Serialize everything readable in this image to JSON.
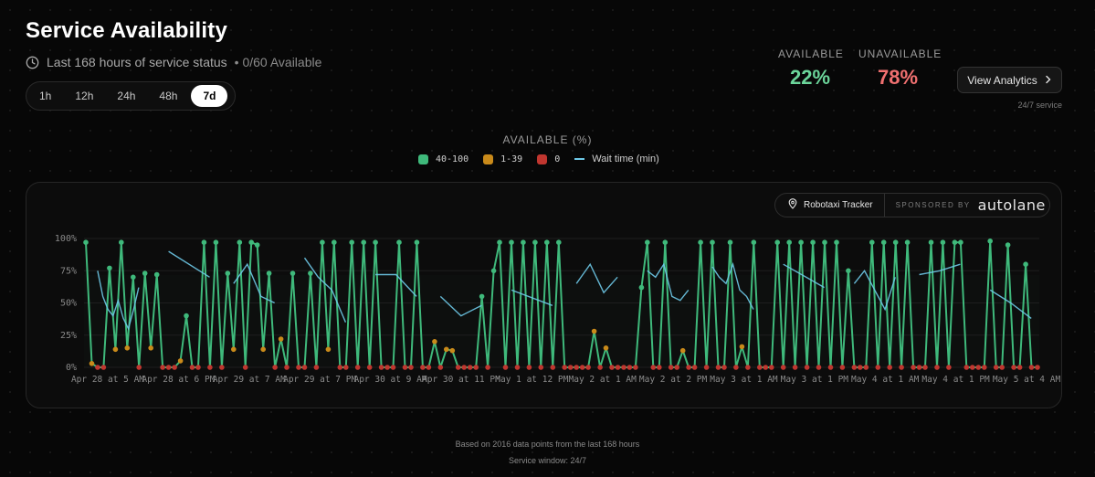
{
  "header": {
    "title": "Service Availability",
    "subtitle": "Last 168 hours of service status",
    "available_count": "• 0/60 Available"
  },
  "ranges": [
    "1h",
    "12h",
    "24h",
    "48h",
    "7d"
  ],
  "active_range": "7d",
  "stats": {
    "available_label": "AVAILABLE",
    "available_value": "22%",
    "unavailable_label": "UNAVAILABLE",
    "unavailable_value": "78%"
  },
  "analytics_button": "View Analytics",
  "service_note": "24/7 service",
  "sponsor": {
    "tracker_label": "Robotaxi Tracker",
    "sponsored_by": "SPONSORED BY",
    "brand": "autolane"
  },
  "footer": {
    "line1": "Based on 2016 data points from the last 168 hours",
    "line2": "Service window: 24/7"
  },
  "colors": {
    "high": "#3fb97b",
    "mid": "#c98a1a",
    "zero": "#c0362f",
    "wait": "#6ec9e8",
    "accent_available": "#6bd59a",
    "accent_unavailable": "#f07070"
  },
  "icons": {
    "clock": "clock-icon",
    "chevron": "chevron-right-icon",
    "pin": "map-pin-icon"
  },
  "chart_data": {
    "type": "line",
    "title": "AVAILABLE (%)",
    "y_ticks": [
      "0%",
      "25%",
      "50%",
      "75%",
      "100%"
    ],
    "ylim": [
      0,
      100
    ],
    "legend": [
      {
        "label": "40-100",
        "color": "#3fb97b",
        "kind": "swatch",
        "mono": true
      },
      {
        "label": "1-39",
        "color": "#c98a1a",
        "kind": "swatch",
        "mono": true
      },
      {
        "label": "0",
        "color": "#c0362f",
        "kind": "swatch",
        "mono": true
      },
      {
        "label": "Wait time (min)",
        "color": "#6ec9e8",
        "kind": "line",
        "mono": false
      }
    ],
    "x_tick_labels": [
      "Apr 28 at 5 AM",
      "Apr 28 at 6 PM",
      "Apr 29 at 7 AM",
      "Apr 29 at 7 PM",
      "Apr 30 at 9 AM",
      "Apr 30 at 11 PM",
      "May 1 at 12 PM",
      "May 2 at 1 AM",
      "May 2 at 2 PM",
      "May 3 at 1 AM",
      "May 3 at 1 PM",
      "May 4 at 1 AM",
      "May 4 at 1 PM",
      "May 5 at 4 AM"
    ],
    "series": [
      {
        "name": "Available",
        "values": [
          97,
          3,
          0,
          0,
          77,
          14,
          97,
          15,
          70,
          0,
          73,
          15,
          72,
          0,
          0,
          0,
          5,
          40,
          0,
          0,
          97,
          0,
          97,
          0,
          73,
          14,
          97,
          0,
          97,
          95,
          14,
          73,
          0,
          22,
          0,
          73,
          0,
          0,
          73,
          0,
          97,
          14,
          97,
          0,
          0,
          97,
          0,
          97,
          0,
          97,
          0,
          0,
          0,
          97,
          0,
          0,
          97,
          0,
          0,
          20,
          0,
          14,
          13,
          0,
          0,
          0,
          0,
          55,
          0,
          75,
          97,
          0,
          97,
          0,
          97,
          0,
          97,
          0,
          97,
          0,
          97,
          0,
          0,
          0,
          0,
          0,
          28,
          0,
          15,
          0,
          0,
          0,
          0,
          0,
          62,
          97,
          0,
          0,
          97,
          0,
          0,
          13,
          0,
          0,
          97,
          0,
          97,
          0,
          0,
          97,
          0,
          16,
          0,
          97,
          0,
          0,
          0,
          97,
          0,
          97,
          0,
          97,
          0,
          97,
          0,
          97,
          0,
          97,
          0,
          75,
          0,
          0,
          0,
          97,
          0,
          97,
          0,
          97,
          0,
          97,
          0,
          0,
          0,
          97,
          0,
          97,
          0,
          97,
          97,
          0,
          0,
          0,
          0,
          98,
          0,
          0,
          95,
          0,
          0,
          80,
          0,
          0
        ],
        "bands": [
          "high",
          "mid",
          "zero",
          "zero",
          "high",
          "mid",
          "high",
          "mid",
          "high",
          "zero",
          "high",
          "mid",
          "high",
          "zero",
          "zero",
          "zero",
          "mid",
          "high",
          "zero",
          "zero",
          "high",
          "zero",
          "high",
          "zero",
          "high",
          "mid",
          "high",
          "zero",
          "high",
          "high",
          "mid",
          "high",
          "zero",
          "mid",
          "zero",
          "high",
          "zero",
          "zero",
          "high",
          "zero",
          "high",
          "mid",
          "high",
          "zero",
          "zero",
          "high",
          "zero",
          "high",
          "zero",
          "high",
          "zero",
          "zero",
          "zero",
          "high",
          "zero",
          "zero",
          "high",
          "zero",
          "zero",
          "mid",
          "zero",
          "mid",
          "mid",
          "zero",
          "zero",
          "zero",
          "zero",
          "high",
          "zero",
          "high",
          "high",
          "zero",
          "high",
          "zero",
          "high",
          "zero",
          "high",
          "zero",
          "high",
          "zero",
          "high",
          "zero",
          "zero",
          "zero",
          "zero",
          "zero",
          "mid",
          "zero",
          "mid",
          "zero",
          "zero",
          "zero",
          "zero",
          "zero",
          "high",
          "high",
          "zero",
          "zero",
          "high",
          "zero",
          "zero",
          "mid",
          "zero",
          "zero",
          "high",
          "zero",
          "high",
          "zero",
          "zero",
          "high",
          "zero",
          "mid",
          "zero",
          "high",
          "zero",
          "zero",
          "zero",
          "high",
          "zero",
          "high",
          "zero",
          "high",
          "zero",
          "high",
          "zero",
          "high",
          "zero",
          "high",
          "zero",
          "high",
          "zero",
          "zero",
          "zero",
          "high",
          "zero",
          "high",
          "zero",
          "high",
          "zero",
          "high",
          "zero",
          "zero",
          "zero",
          "high",
          "zero",
          "high",
          "zero",
          "high",
          "high",
          "zero",
          "zero",
          "zero",
          "zero",
          "high",
          "zero",
          "zero",
          "high",
          "zero",
          "zero",
          "high",
          "zero",
          "zero"
        ]
      },
      {
        "name": "Wait time (min)",
        "segments": [
          [
            75,
            55,
            45,
            40,
            52,
            38,
            30,
            45,
            62
          ],
          [
            90,
            70
          ],
          [
            65,
            80,
            55,
            50
          ],
          [
            85,
            70,
            60,
            35
          ],
          [
            72,
            72,
            55
          ],
          [
            55,
            40,
            48
          ],
          [
            60,
            48
          ],
          [
            65,
            80,
            58,
            70
          ],
          [
            75,
            70,
            80,
            55,
            52,
            60
          ],
          [
            78,
            70,
            65,
            80,
            60,
            55,
            45
          ],
          [
            80,
            62
          ],
          [
            65,
            75,
            60,
            45,
            70
          ],
          [
            72,
            75,
            80
          ],
          [
            60,
            50,
            38
          ]
        ]
      }
    ]
  }
}
